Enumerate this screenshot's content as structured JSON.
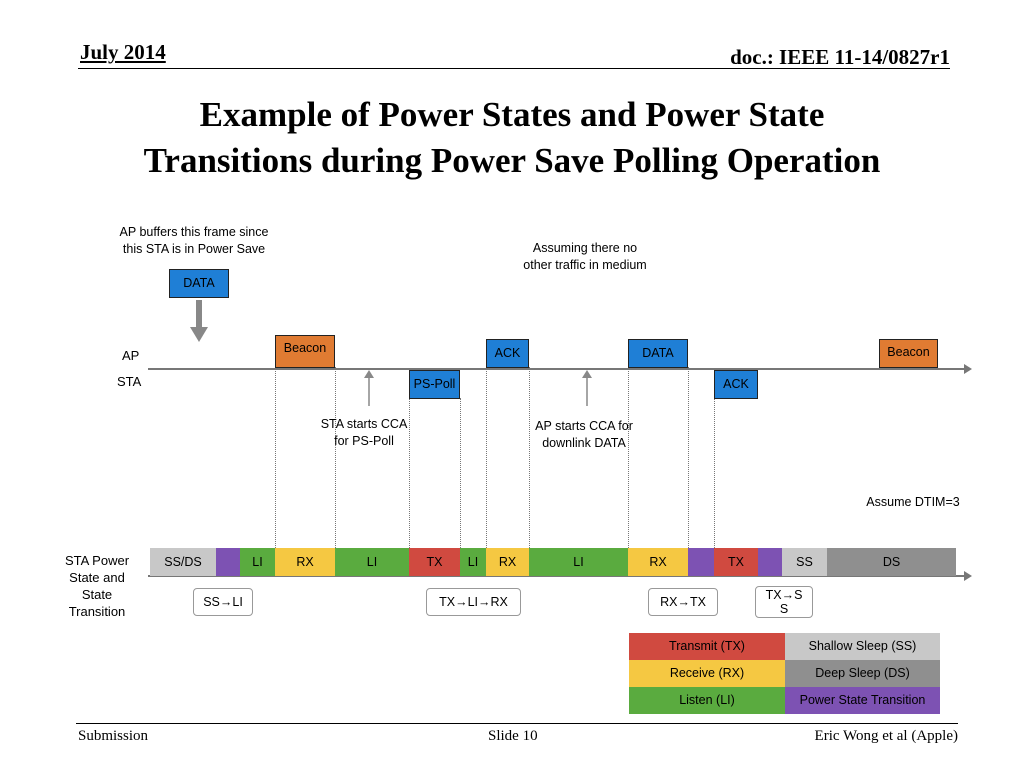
{
  "header": {
    "date": "July 2014",
    "doc": "doc.: IEEE 11-14/0827r1"
  },
  "title": {
    "line1": "Example of Power States and Power State",
    "line2": "Transitions during Power Save Polling Operation"
  },
  "notes": {
    "ap_buffers_1": "AP buffers this frame since",
    "ap_buffers_2": "this STA is in Power Save",
    "assuming_1": "Assuming there no",
    "assuming_2": "other traffic in medium",
    "sta_cca_1": "STA starts CCA",
    "sta_cca_2": "for PS-Poll",
    "ap_cca_1": "AP starts CCA for",
    "ap_cca_2": "downlink DATA",
    "dtim": "Assume DTIM=3"
  },
  "lanes": {
    "ap": "AP",
    "sta": "STA",
    "power_1": "STA Power",
    "power_2": "State and",
    "power_3": "State",
    "power_4": "Transition"
  },
  "frames": {
    "data_buffered": "DATA",
    "beacon_1": "Beacon",
    "ps_poll": "PS-Poll",
    "ack_ap": "ACK",
    "data_ap": "DATA",
    "ack_sta": "ACK",
    "beacon_2": "Beacon"
  },
  "states": [
    {
      "label": "SS/DS",
      "type": "ss"
    },
    {
      "label": "",
      "type": "pt"
    },
    {
      "label": "LI",
      "type": "li"
    },
    {
      "label": "RX",
      "type": "rx"
    },
    {
      "label": "LI",
      "type": "li"
    },
    {
      "label": "TX",
      "type": "tx"
    },
    {
      "label": "LI",
      "type": "li"
    },
    {
      "label": "RX",
      "type": "rx"
    },
    {
      "label": "LI",
      "type": "li"
    },
    {
      "label": "RX",
      "type": "rx"
    },
    {
      "label": "",
      "type": "pt"
    },
    {
      "label": "TX",
      "type": "tx"
    },
    {
      "label": "",
      "type": "pt"
    },
    {
      "label": "SS",
      "type": "ss"
    },
    {
      "label": "DS",
      "type": "ds"
    }
  ],
  "callouts": {
    "ss_li": "SS→LI",
    "tx_li_rx": "TX→LI→RX",
    "rx_tx": "RX→TX",
    "tx_ss_1": "TX→S",
    "tx_ss_2": "S"
  },
  "legend": {
    "tx": "Transmit (TX)",
    "ss": "Shallow Sleep (SS)",
    "rx": "Receive (RX)",
    "ds": "Deep Sleep (DS)",
    "li": "Listen (LI)",
    "pt": "Power State Transition"
  },
  "colors": {
    "tx": "#d04a40",
    "rx": "#f5c842",
    "li": "#5aab3f",
    "ss": "#c8c8c8",
    "ds": "#8f8f8f",
    "pt": "#7d52b3",
    "frame_blue": "#1f7fd6",
    "frame_orange": "#e07b32"
  },
  "footer": {
    "left": "Submission",
    "center": "Slide 10",
    "right": "Eric Wong et al (Apple)"
  }
}
